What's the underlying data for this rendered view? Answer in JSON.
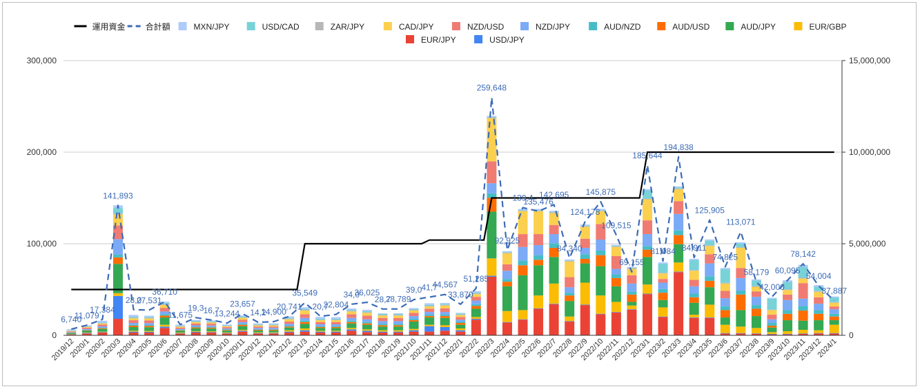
{
  "chart_data": {
    "type": "bar",
    "stacked": true,
    "title": "",
    "categories": [
      "2019/12",
      "2020/1",
      "2020/2",
      "2020/3",
      "2020/4",
      "2020/5",
      "2020/6",
      "2020/7",
      "2020/8",
      "2020/9",
      "2020/10",
      "2020/11",
      "2020/12",
      "2021/1",
      "2021/2",
      "2021/3",
      "2021/4",
      "2021/5",
      "2021/6",
      "2021/7",
      "2021/8",
      "2021/9",
      "2021/10",
      "2021/11",
      "2021/12",
      "2022/1",
      "2022/2",
      "2022/3",
      "2022/4",
      "2022/5",
      "2022/6",
      "2022/7",
      "2022/8",
      "2022/9",
      "2022/10",
      "2022/11",
      "2022/12",
      "2023/1",
      "2023/2",
      "2023/3",
      "2023/4",
      "2023/5",
      "2023/6",
      "2023/7",
      "2023/8",
      "2023/9",
      "2023/10",
      "2023/11",
      "2023/12",
      "2024/1"
    ],
    "left_axis": {
      "ylim": [
        0,
        300000
      ],
      "ticks": [
        "0",
        "100,000",
        "200,000",
        "300,000"
      ]
    },
    "right_axis": {
      "ylim": [
        0,
        15000000
      ],
      "ticks": [
        "0",
        "5,000,000",
        "10,000,000",
        "15,000,000"
      ]
    },
    "grid": true,
    "legend_position": "top",
    "series": [
      {
        "name": "EUR/JPY",
        "color": "#ea4335",
        "values": [
          800,
          2000,
          3000,
          18000,
          3000,
          3000,
          8000,
          2000,
          3000,
          3000,
          2000,
          4000,
          2000,
          2000,
          3000,
          4000,
          3000,
          3000,
          5000,
          3500,
          3000,
          3000,
          4000,
          4000,
          5000,
          4000,
          17000,
          64000,
          14000,
          17000,
          29000,
          34000,
          15000,
          33000,
          23000,
          25000,
          28000,
          45000,
          20000,
          69000,
          19000,
          19000,
          2000,
          2000,
          1500,
          1000,
          1000,
          1500,
          2000,
          2000
        ]
      },
      {
        "name": "USD/JPY",
        "color": "#4285f4",
        "values": [
          300,
          500,
          500,
          25000,
          1000,
          800,
          1500,
          400,
          800,
          600,
          500,
          1000,
          500,
          500,
          1000,
          1500,
          1000,
          1000,
          1500,
          1500,
          1000,
          1000,
          1500,
          6000,
          4000,
          1500,
          1000,
          1000,
          500,
          500,
          500,
          500,
          500,
          500,
          500,
          500,
          500,
          500,
          500,
          500,
          500,
          500,
          500,
          500,
          500,
          500,
          500,
          500,
          500,
          500
        ]
      },
      {
        "name": "EUR/GBP",
        "color": "#fbbc04",
        "values": [
          300,
          400,
          500,
          3000,
          1000,
          1000,
          2000,
          500,
          800,
          800,
          600,
          1000,
          700,
          700,
          1500,
          2000,
          1000,
          1000,
          1500,
          1500,
          1500,
          1500,
          1500,
          1500,
          2000,
          2000,
          2000,
          19000,
          12000,
          10000,
          14000,
          22000,
          5000,
          24000,
          20000,
          11000,
          4000,
          10000,
          10000,
          10000,
          3000,
          14000,
          9000,
          7000,
          6000,
          2000,
          3000,
          4000,
          3000,
          9000
        ]
      },
      {
        "name": "AUD/JPY",
        "color": "#34a853",
        "values": [
          1000,
          2000,
          3000,
          32000,
          4000,
          4000,
          8000,
          2000,
          3000,
          3000,
          2000,
          4000,
          2000,
          2000,
          3000,
          5000,
          3000,
          3000,
          5000,
          5000,
          4000,
          4000,
          8000,
          8000,
          8000,
          4000,
          9000,
          51000,
          27000,
          38000,
          33000,
          29000,
          17000,
          21000,
          32000,
          17000,
          4000,
          30000,
          8000,
          20000,
          13000,
          19000,
          8000,
          18000,
          13000,
          5000,
          12000,
          10000,
          11000,
          5000
        ]
      },
      {
        "name": "AUD/USD",
        "color": "#ff6d01",
        "values": [
          300,
          400,
          800,
          7000,
          1500,
          1500,
          2000,
          500,
          1000,
          1000,
          700,
          1500,
          800,
          800,
          1000,
          2000,
          1000,
          1000,
          1500,
          1500,
          1500,
          1500,
          1500,
          1500,
          2000,
          2000,
          3000,
          15000,
          5000,
          11000,
          6000,
          10000,
          6000,
          5000,
          12000,
          9000,
          8000,
          8000,
          8000,
          10000,
          6000,
          7000,
          8000,
          17000,
          8000,
          2000,
          7000,
          11000,
          7000,
          4000
        ]
      },
      {
        "name": "AUD/NZD",
        "color": "#46bdc6",
        "values": [
          300,
          400,
          500,
          3000,
          1000,
          1000,
          1500,
          500,
          800,
          800,
          600,
          1000,
          600,
          600,
          1000,
          1500,
          1000,
          1000,
          1500,
          1500,
          1500,
          1500,
          1500,
          1500,
          1500,
          1500,
          2000,
          5000,
          3000,
          5000,
          5000,
          5000,
          3000,
          5000,
          5000,
          4000,
          3000,
          4000,
          4000,
          5000,
          4000,
          5000,
          4000,
          4000,
          4000,
          3000,
          4000,
          5000,
          4000,
          3000
        ]
      },
      {
        "name": "NZD/JPY",
        "color": "#7baaf7",
        "values": [
          500,
          1000,
          1500,
          17000,
          2000,
          2000,
          3000,
          1000,
          1500,
          1500,
          1000,
          2000,
          1500,
          1500,
          2000,
          3000,
          2000,
          2000,
          3000,
          3000,
          3000,
          3000,
          3000,
          3000,
          3000,
          2000,
          4000,
          11000,
          9000,
          15000,
          11000,
          10000,
          6000,
          7000,
          12000,
          6000,
          9000,
          13000,
          7000,
          18000,
          8000,
          14000,
          9000,
          14000,
          9000,
          4000,
          11000,
          8000,
          7000,
          5000
        ]
      },
      {
        "name": "NZD/USD",
        "color": "#f07b72",
        "values": [
          800,
          1500,
          2000,
          15000,
          3000,
          3000,
          4000,
          1500,
          2000,
          2000,
          1500,
          2500,
          1500,
          1500,
          2500,
          4000,
          2500,
          2500,
          4000,
          4000,
          3500,
          3500,
          3500,
          3500,
          4000,
          3000,
          4000,
          24000,
          7000,
          14000,
          12000,
          10000,
          11000,
          10000,
          17000,
          14000,
          9000,
          15000,
          4000,
          14000,
          7000,
          10000,
          8000,
          11000,
          6000,
          5000,
          6000,
          17000,
          7000,
          3000
        ]
      },
      {
        "name": "CAD/JPY",
        "color": "#fcd04f",
        "values": [
          500,
          800,
          1000,
          12000,
          2000,
          2000,
          3000,
          1000,
          1500,
          1200,
          1000,
          2000,
          1200,
          1200,
          2500,
          4000,
          2000,
          2000,
          3000,
          3000,
          2500,
          2500,
          2500,
          2500,
          3000,
          2000,
          3000,
          47000,
          12000,
          25000,
          25000,
          13000,
          17000,
          13000,
          14000,
          10000,
          7000,
          23000,
          6000,
          13000,
          10000,
          9000,
          8000,
          22000,
          5000,
          5000,
          5000,
          5000,
          6000,
          4000
        ]
      },
      {
        "name": "ZAR/JPY",
        "color": "#b7b7b7",
        "values": [
          300,
          300,
          500,
          1000,
          800,
          800,
          1000,
          500,
          600,
          600,
          500,
          800,
          600,
          600,
          800,
          800,
          600,
          600,
          800,
          800,
          800,
          800,
          800,
          800,
          800,
          800,
          800,
          1000,
          800,
          800,
          800,
          800,
          800,
          800,
          800,
          800,
          800,
          800,
          800,
          800,
          800,
          800,
          800,
          800,
          800,
          500,
          800,
          800,
          800,
          800
        ]
      },
      {
        "name": "USD/CAD",
        "color": "#78d2d8",
        "values": [
          300,
          400,
          700,
          6000,
          1000,
          1000,
          1500,
          500,
          800,
          800,
          500,
          1000,
          600,
          600,
          1000,
          1000,
          1000,
          1000,
          1000,
          1000,
          1000,
          1000,
          1000,
          1000,
          1000,
          1000,
          1000,
          500,
          500,
          500,
          500,
          500,
          500,
          500,
          500,
          500,
          500,
          9000,
          10000,
          1000,
          11000,
          5000,
          15000,
          4000,
          6000,
          12000,
          8000,
          12000,
          5000,
          5000
        ]
      },
      {
        "name": "MXN/JPY",
        "color": "#aecbfa",
        "values": [
          1149,
          1079,
          1884,
          2893,
          2000,
          1300,
          1210,
          1175,
          1000,
          1000,
          844,
          857,
          1000,
          1000,
          1441,
          1749,
          2000,
          1704,
          1500,
          1525,
          628,
          789,
          1000,
          1667,
          1000,
          770,
          1485,
          1148,
          1125,
          1176,
          1195,
          1195,
          1040,
          1178,
          1375,
          1015,
          855,
          1344,
          1284,
          1338,
          1111,
          1405,
          1325,
          1271,
          1179,
          1000,
          1795,
          2142,
          1504,
          1087
        ]
      }
    ],
    "total": {
      "name": "合計額",
      "color": "#3d6bb5",
      "values": [
        6740,
        11079,
        17384,
        141893,
        28000,
        27531,
        36710,
        11675,
        19300,
        16700,
        13244,
        23657,
        14200,
        14900,
        20741,
        35549,
        20700,
        22804,
        34000,
        36025,
        28700,
        28789,
        39000,
        41700,
        44567,
        33870,
        51285,
        259648,
        92925,
        139400,
        135476,
        142695,
        84340,
        124178,
        145875,
        109515,
        69155,
        185644,
        81084,
        194838,
        84911,
        125905,
        74825,
        113071,
        58179,
        42000,
        60095,
        78142,
        54004,
        37887
      ],
      "labels": [
        "6,740",
        "11,079",
        "17,384",
        "141,893",
        "28,0",
        "27,531",
        "36,710",
        "11,675",
        "19,3",
        "16,7",
        "13,244",
        "23,657",
        "14,2",
        "14,900",
        "20,741",
        "35,549",
        "20,7",
        "22,804",
        "34,0",
        "36,025",
        "28,7",
        "28,789",
        "39,0",
        "41,7",
        "44,567",
        "33,870",
        "51,285",
        "259,648",
        "92,925",
        "139,4",
        "135,476",
        "142,695",
        "84,340",
        "124,178",
        "145,875",
        "109,515",
        "69,155",
        "185,644",
        "81,084",
        "194,838",
        "84,911",
        "125,905",
        "74,825",
        "113,071",
        "58,179",
        "42,000",
        "60,095",
        "78,142",
        "54,004",
        "37,887"
      ]
    },
    "capital": {
      "name": "運用資金",
      "color": "#000000",
      "axis": "right",
      "values": [
        2500000,
        2500000,
        2500000,
        2500000,
        2500000,
        2500000,
        2500000,
        2500000,
        2500000,
        2500000,
        2500000,
        2500000,
        2500000,
        2500000,
        2500000,
        5000000,
        5000000,
        5000000,
        5000000,
        5000000,
        5000000,
        5000000,
        5000000,
        5200000,
        5200000,
        5200000,
        5200000,
        7500000,
        7500000,
        7500000,
        7500000,
        7500000,
        7500000,
        7500000,
        7500000,
        7500000,
        7500000,
        10000000,
        10000000,
        10000000,
        10000000,
        10000000,
        10000000,
        10000000,
        10000000,
        10000000,
        10000000,
        10000000,
        10000000,
        10000000
      ]
    },
    "legend": [
      {
        "name": "運用資金",
        "style": "line",
        "color": "#000000"
      },
      {
        "name": "合計額",
        "style": "dash",
        "color": "#3d6bb5"
      },
      {
        "name": "MXN/JPY",
        "style": "box",
        "color": "#aecbfa"
      },
      {
        "name": "USD/CAD",
        "style": "box",
        "color": "#78d2d8"
      },
      {
        "name": "ZAR/JPY",
        "style": "box",
        "color": "#b7b7b7"
      },
      {
        "name": "CAD/JPY",
        "style": "box",
        "color": "#fcd04f"
      },
      {
        "name": "NZD/USD",
        "style": "box",
        "color": "#f07b72"
      },
      {
        "name": "NZD/JPY",
        "style": "box",
        "color": "#7baaf7"
      },
      {
        "name": "AUD/NZD",
        "style": "box",
        "color": "#46bdc6"
      },
      {
        "name": "AUD/USD",
        "style": "box",
        "color": "#ff6d01"
      },
      {
        "name": "AUD/JPY",
        "style": "box",
        "color": "#34a853"
      },
      {
        "name": "EUR/GBP",
        "style": "box",
        "color": "#fbbc04"
      },
      {
        "name": "EUR/JPY",
        "style": "box",
        "color": "#ea4335"
      },
      {
        "name": "USD/JPY",
        "style": "box",
        "color": "#4285f4"
      }
    ]
  }
}
